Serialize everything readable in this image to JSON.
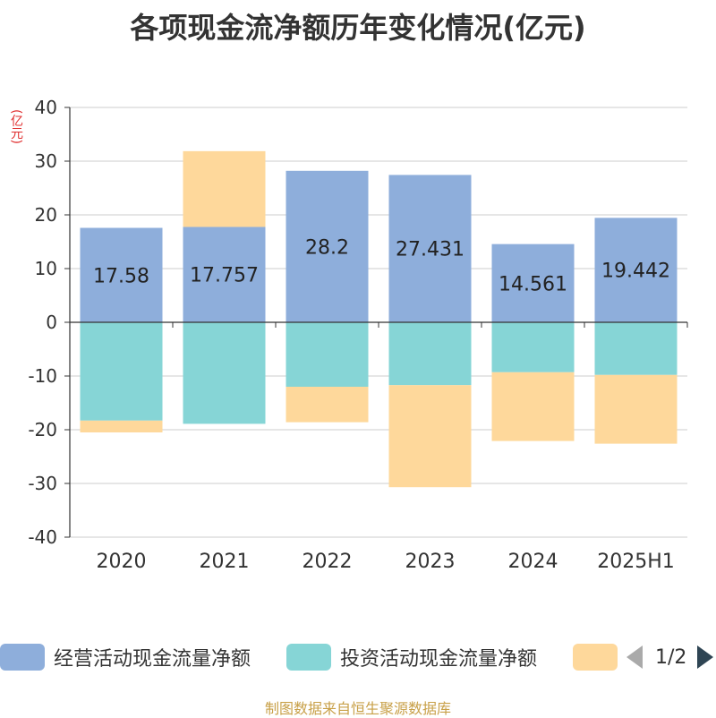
{
  "title": "各项现金流净额历年变化情况(亿元)",
  "unit": "(亿元)",
  "source": "制图数据来自恒生聚源数据库",
  "legend": {
    "items": [
      {
        "label": "经营活动现金流量净额",
        "color": "#8eaedb"
      },
      {
        "label": "投资活动现金流量净额",
        "color": "#86d5d6"
      },
      {
        "label": "",
        "color": "#fed89b"
      }
    ],
    "pager": {
      "text": "1/2"
    }
  },
  "chart_data": {
    "type": "bar",
    "stacked": true,
    "categories": [
      "2020",
      "2021",
      "2022",
      "2023",
      "2024",
      "2025H1"
    ],
    "ylim": [
      -40,
      40
    ],
    "yticks": [
      40,
      30,
      20,
      10,
      0,
      -10,
      -20,
      -30,
      -40
    ],
    "grid": true,
    "legend_position": "bottom",
    "series": [
      {
        "name": "经营活动现金流量净额",
        "color": "#8eaedb",
        "values": [
          17.58,
          17.757,
          28.2,
          27.431,
          14.561,
          19.442
        ],
        "labels": [
          "17.58",
          "17.757",
          "28.2",
          "27.431",
          "14.561",
          "19.442"
        ]
      },
      {
        "name": "投资活动现金流量净额",
        "color": "#86d5d6",
        "values": [
          -18.3,
          -18.9,
          -12.0,
          -11.7,
          -9.3,
          -9.8
        ]
      },
      {
        "color": "#fed89b",
        "values": [
          -2.2,
          14.1,
          -6.6,
          -19.0,
          -12.8,
          -12.8
        ]
      }
    ]
  }
}
